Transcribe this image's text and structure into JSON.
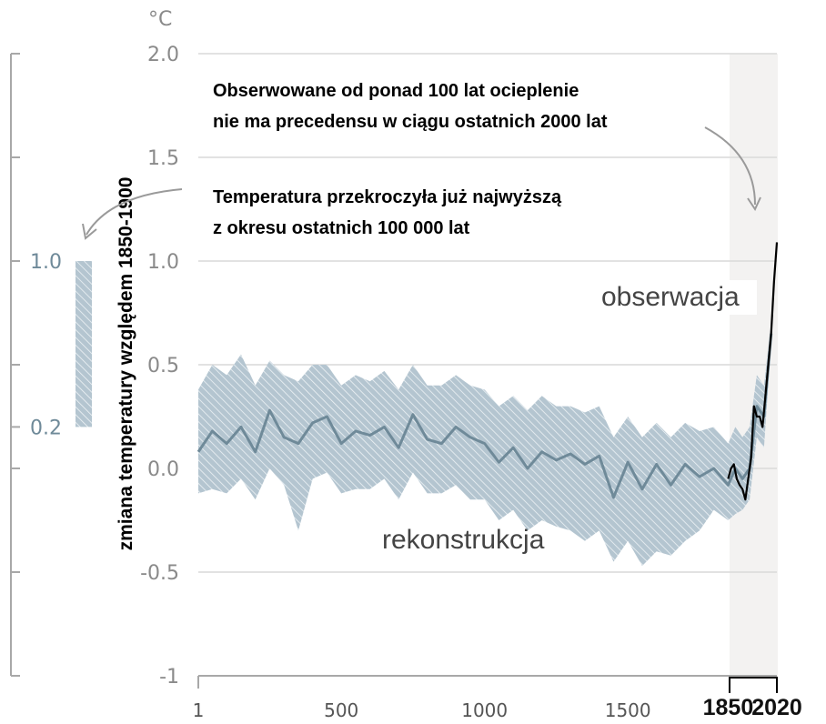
{
  "chart_data": {
    "type": "line",
    "unit_label": "°C",
    "ylabel": "zmiana temperatury względem 1850-1900",
    "ylim": [
      -1,
      2
    ],
    "yticks": [
      "2.0",
      "1.5",
      "1.0",
      "0.5",
      "0.0",
      "-0.5",
      "-1"
    ],
    "ytick_values": [
      2.0,
      1.5,
      1.0,
      0.5,
      0.0,
      -0.5,
      -1
    ],
    "xlim": [
      1,
      2020
    ],
    "xticks": [
      "1",
      "500",
      "1000",
      "1500",
      "1850",
      "2020"
    ],
    "xtick_values": [
      1,
      500,
      1000,
      1500,
      1850,
      2020
    ],
    "grid": true,
    "highlight_period": [
      1850,
      2020
    ],
    "annotations": [
      "Obserwowane od ponad 100 lat ocieplenie",
      "nie ma precedensu w ciągu ostatnich 2000 lat",
      "Temperatura przekroczyła już najwyższą",
      "z okresu ostatnich 100 000 lat"
    ],
    "series": [
      {
        "name": "rekonstrukcja",
        "color": "#6f8a99",
        "x": [
          1,
          50,
          100,
          150,
          200,
          250,
          300,
          350,
          400,
          450,
          500,
          550,
          600,
          650,
          700,
          750,
          800,
          850,
          900,
          950,
          1000,
          1050,
          1100,
          1150,
          1200,
          1250,
          1300,
          1350,
          1400,
          1450,
          1500,
          1550,
          1600,
          1650,
          1700,
          1750,
          1800,
          1850,
          1875,
          1900,
          1925,
          1950,
          1975,
          2000
        ],
        "values": [
          0.08,
          0.18,
          0.12,
          0.2,
          0.08,
          0.28,
          0.15,
          0.12,
          0.22,
          0.25,
          0.12,
          0.18,
          0.16,
          0.2,
          0.1,
          0.26,
          0.14,
          0.12,
          0.2,
          0.15,
          0.12,
          0.03,
          0.1,
          0.0,
          0.08,
          0.04,
          0.07,
          0.02,
          0.06,
          -0.14,
          0.03,
          -0.1,
          0.02,
          -0.08,
          0.02,
          -0.04,
          0.0,
          -0.08,
          0.0,
          -0.05,
          0.0,
          0.3,
          0.25,
          0.65
        ],
        "upper": [
          0.38,
          0.5,
          0.45,
          0.55,
          0.4,
          0.52,
          0.45,
          0.42,
          0.5,
          0.5,
          0.4,
          0.45,
          0.42,
          0.47,
          0.38,
          0.5,
          0.4,
          0.4,
          0.45,
          0.4,
          0.38,
          0.3,
          0.35,
          0.28,
          0.35,
          0.3,
          0.3,
          0.27,
          0.3,
          0.15,
          0.25,
          0.15,
          0.22,
          0.15,
          0.22,
          0.18,
          0.2,
          0.12,
          0.2,
          0.15,
          0.2,
          0.45,
          0.4,
          0.7
        ],
        "lower": [
          -0.12,
          -0.1,
          -0.12,
          -0.05,
          -0.15,
          0.0,
          -0.08,
          -0.3,
          -0.05,
          -0.02,
          -0.12,
          -0.1,
          -0.1,
          -0.05,
          -0.15,
          -0.02,
          -0.12,
          -0.12,
          -0.08,
          -0.15,
          -0.15,
          -0.25,
          -0.2,
          -0.3,
          -0.25,
          -0.28,
          -0.3,
          -0.35,
          -0.3,
          -0.45,
          -0.35,
          -0.47,
          -0.4,
          -0.42,
          -0.35,
          -0.3,
          -0.2,
          -0.25,
          -0.22,
          -0.2,
          -0.15,
          0.15,
          0.1,
          0.6
        ]
      },
      {
        "name": "obserwacja",
        "color": "#000000",
        "x": [
          1850,
          1860,
          1870,
          1880,
          1890,
          1900,
          1910,
          1920,
          1930,
          1940,
          1950,
          1960,
          1970,
          1980,
          1990,
          2000,
          2010,
          2020
        ],
        "values": [
          -0.05,
          0.0,
          0.02,
          -0.05,
          -0.08,
          -0.1,
          -0.15,
          -0.05,
          0.05,
          0.3,
          0.25,
          0.25,
          0.2,
          0.35,
          0.5,
          0.65,
          0.9,
          1.09
        ]
      }
    ],
    "inset_bar": {
      "label_top": "1.0",
      "label_bottom": "0.2",
      "range": [
        0.2,
        1.0
      ],
      "color": "#9fb3c0"
    }
  }
}
